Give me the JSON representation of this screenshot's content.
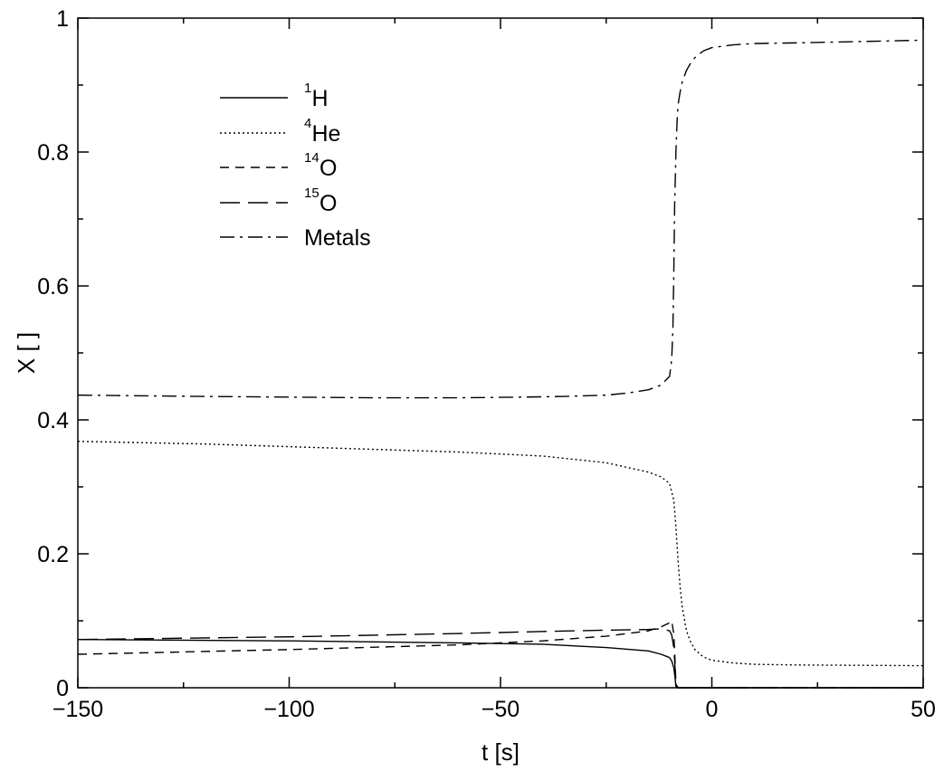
{
  "chart_data": {
    "type": "line",
    "title": "",
    "xlabel": "t [s]",
    "ylabel": "X [ ]",
    "xlim": [
      -150,
      50
    ],
    "ylim": [
      0,
      1
    ],
    "xticks": [
      -150,
      -100,
      -50,
      0,
      50
    ],
    "xtick_labels": [
      "−150",
      "−100",
      "−50",
      "0",
      "50"
    ],
    "yticks": [
      0,
      0.2,
      0.4,
      0.6,
      0.8,
      1
    ],
    "ytick_labels": [
      "0",
      "0.2",
      "0.4",
      "0.6",
      "0.8",
      "1"
    ],
    "grid": false,
    "legend_position": "top-left",
    "series": [
      {
        "name": "H",
        "superscript": "1",
        "style": "solid",
        "x": [
          -150,
          -100,
          -60,
          -40,
          -25,
          -15,
          -12,
          -10,
          -9.5,
          -9,
          -8.7,
          -8.5,
          -8,
          0,
          50
        ],
        "y": [
          0.072,
          0.07,
          0.067,
          0.065,
          0.06,
          0.055,
          0.05,
          0.045,
          0.04,
          0.03,
          0.015,
          0.002,
          0.0,
          0.0,
          0.0
        ]
      },
      {
        "name": "He",
        "superscript": "4",
        "style": "dotted",
        "x": [
          -150,
          -120,
          -100,
          -80,
          -60,
          -40,
          -25,
          -15,
          -12,
          -10,
          -9,
          -8.5,
          -8,
          -7.5,
          -7,
          -6,
          -5,
          -4,
          -2,
          0,
          5,
          10,
          20,
          50
        ],
        "y": [
          0.368,
          0.364,
          0.36,
          0.356,
          0.352,
          0.346,
          0.336,
          0.322,
          0.315,
          0.305,
          0.28,
          0.24,
          0.19,
          0.15,
          0.12,
          0.085,
          0.068,
          0.057,
          0.046,
          0.041,
          0.037,
          0.035,
          0.034,
          0.033
        ]
      },
      {
        "name": "O",
        "superscript": "14",
        "style": "short-dash",
        "x": [
          -150,
          -100,
          -60,
          -40,
          -25,
          -15,
          -12,
          -10,
          -9.5,
          -9,
          -8.7,
          -8.5,
          -8,
          0,
          50
        ],
        "y": [
          0.05,
          0.057,
          0.064,
          0.07,
          0.077,
          0.085,
          0.091,
          0.097,
          0.1,
          0.08,
          0.04,
          0.005,
          0.0,
          0.0,
          0.0
        ]
      },
      {
        "name": "O",
        "superscript": "15",
        "style": "long-dash",
        "x": [
          -150,
          -100,
          -60,
          -40,
          -25,
          -15,
          -12,
          -10,
          -9.5,
          -9,
          -8.7,
          -8.5,
          -8,
          0,
          50
        ],
        "y": [
          0.072,
          0.076,
          0.081,
          0.084,
          0.086,
          0.087,
          0.088,
          0.085,
          0.079,
          0.06,
          0.03,
          0.005,
          0.0,
          0.0,
          0.0
        ]
      },
      {
        "name": "Metals",
        "superscript": "",
        "style": "dash-dot",
        "x": [
          -150,
          -120,
          -100,
          -80,
          -60,
          -45,
          -35,
          -25,
          -20,
          -15,
          -12,
          -10,
          -9.5,
          -9.2,
          -9,
          -8.8,
          -8.5,
          -8.2,
          -8,
          -7.5,
          -7,
          -6,
          -5,
          -4,
          -3,
          -2,
          0,
          5,
          10,
          20,
          50
        ],
        "y": [
          0.437,
          0.435,
          0.434,
          0.433,
          0.433,
          0.434,
          0.435,
          0.437,
          0.44,
          0.445,
          0.452,
          0.465,
          0.49,
          0.54,
          0.62,
          0.72,
          0.8,
          0.85,
          0.87,
          0.89,
          0.905,
          0.922,
          0.933,
          0.941,
          0.946,
          0.951,
          0.956,
          0.96,
          0.962,
          0.963,
          0.967
        ]
      }
    ]
  }
}
